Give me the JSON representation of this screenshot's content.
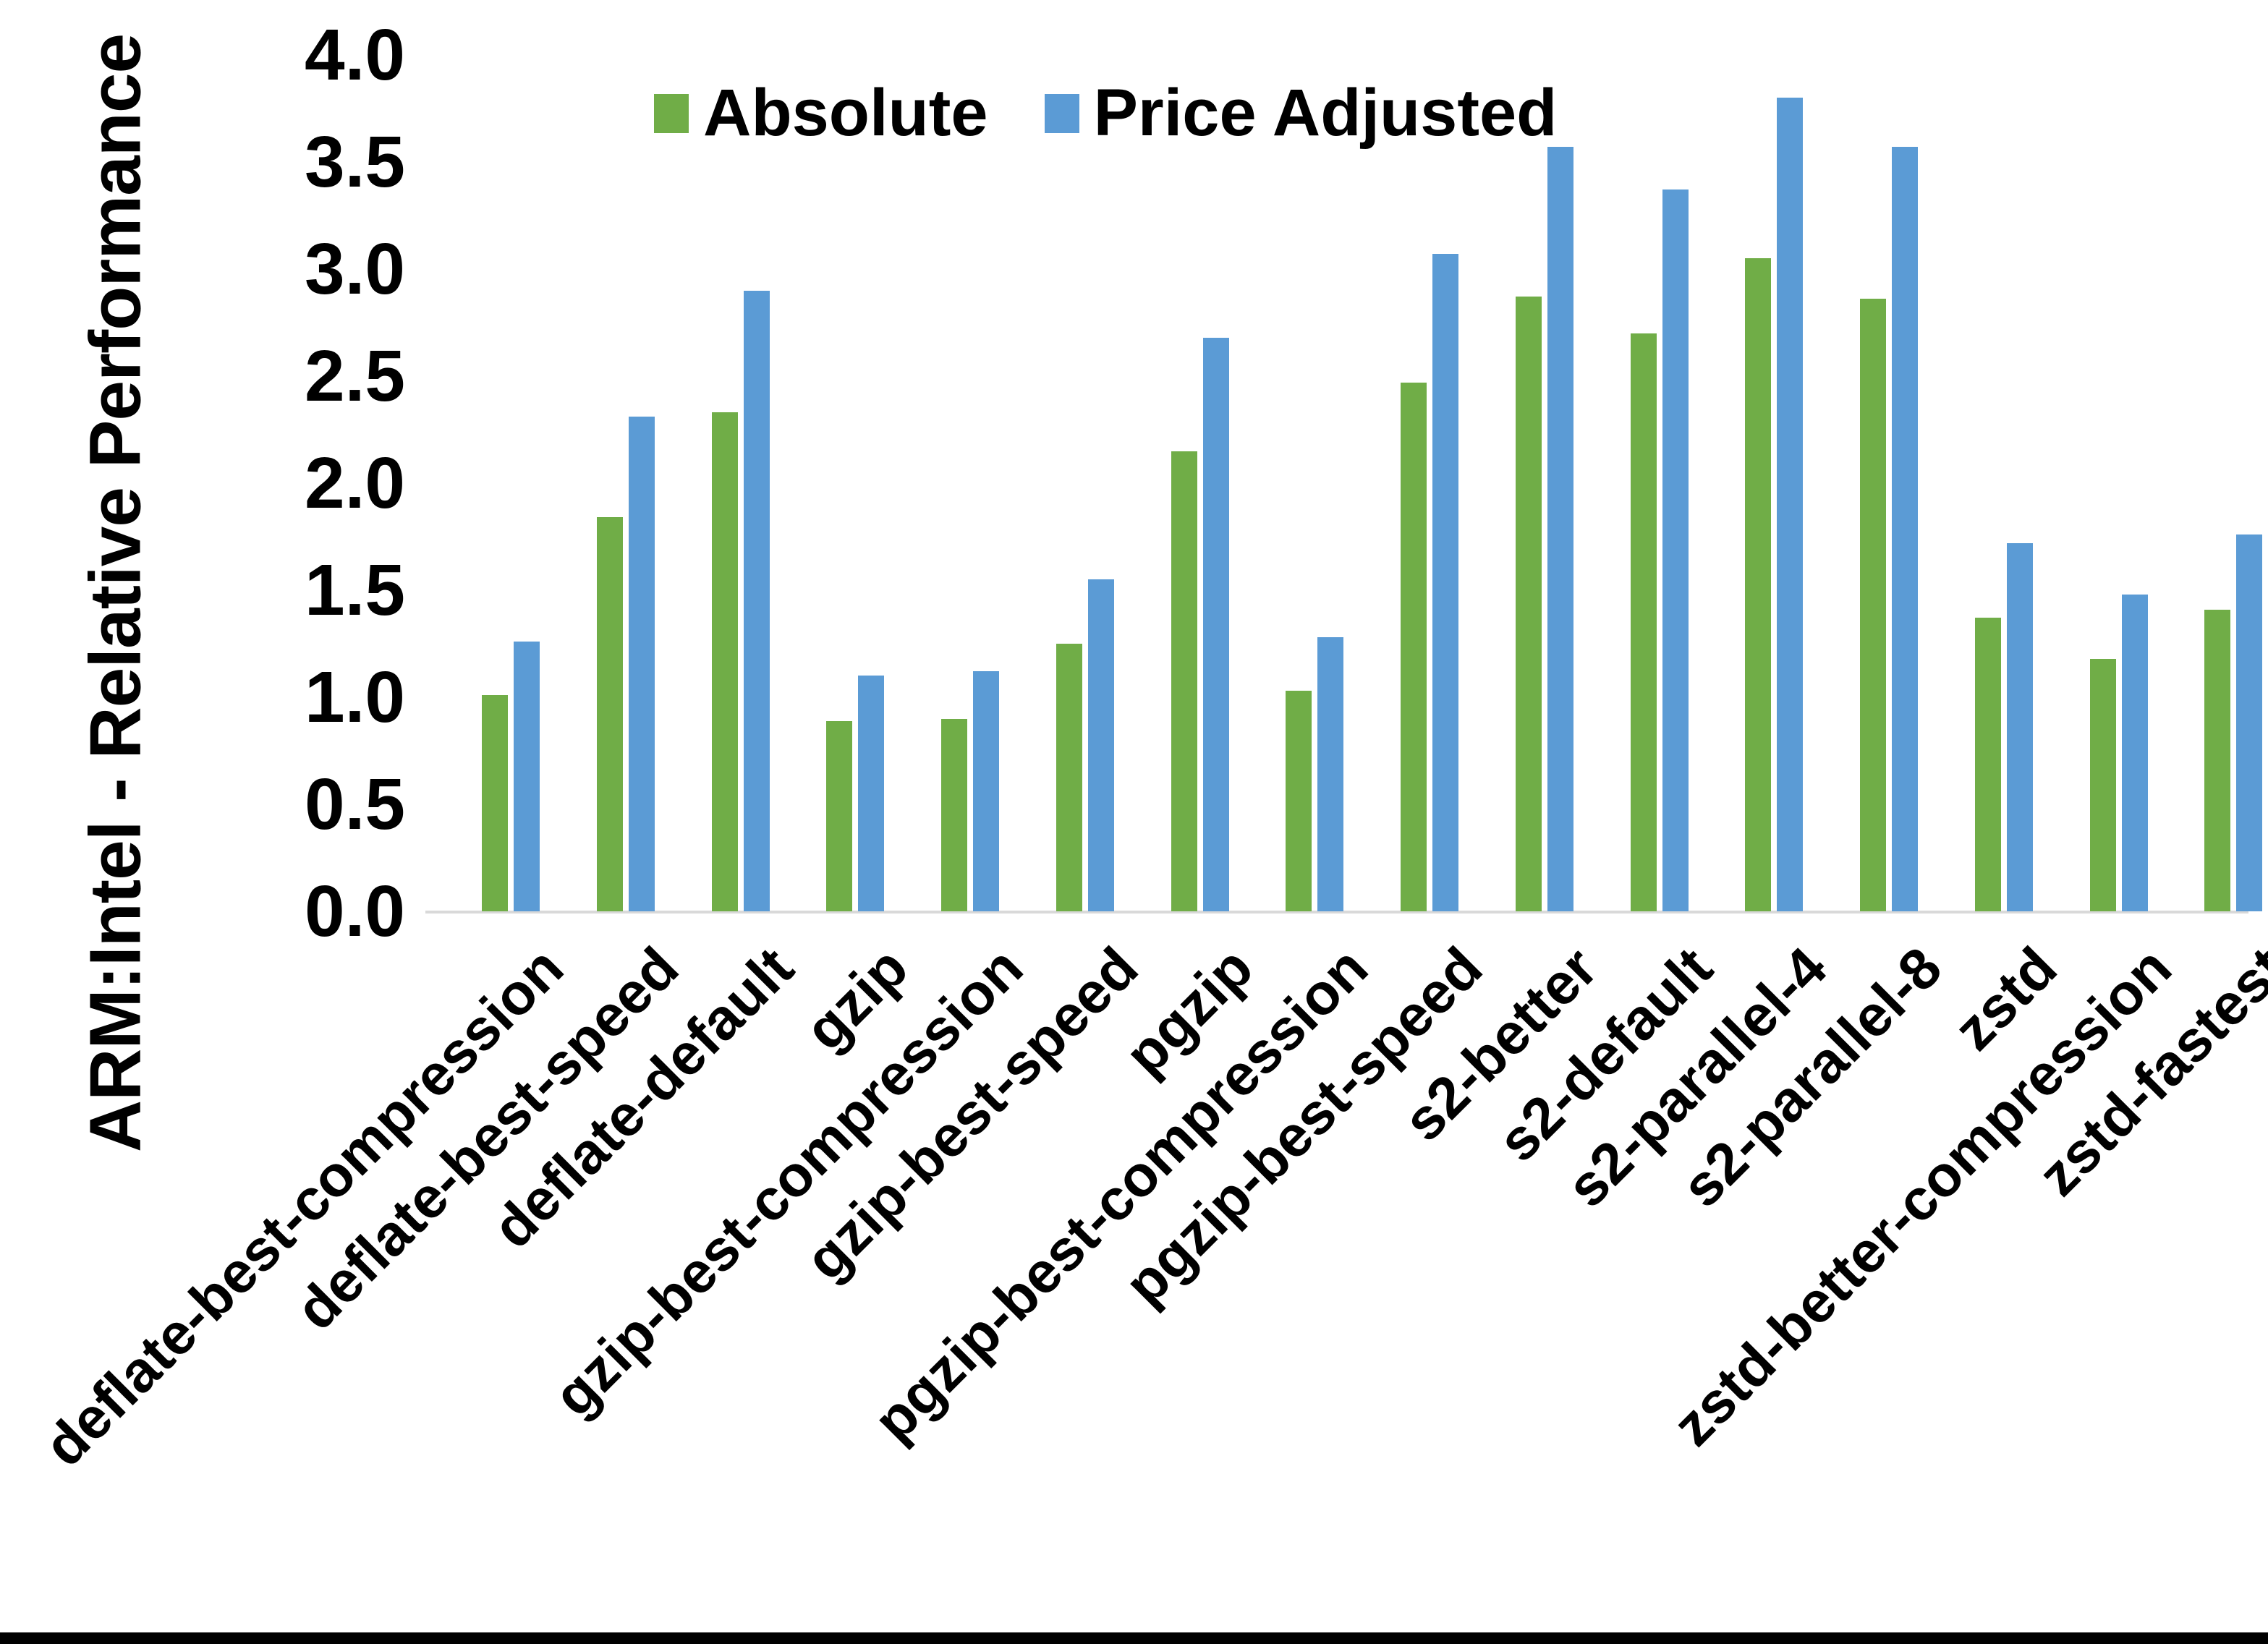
{
  "chart_data": {
    "type": "bar",
    "title": "",
    "xlabel": "",
    "ylabel": "ARM:Intel - Relative Performance",
    "ylim": [
      0.0,
      4.0
    ],
    "y_ticks": [
      "0.0",
      "0.5",
      "1.0",
      "1.5",
      "2.0",
      "2.5",
      "3.0",
      "3.5",
      "4.0"
    ],
    "grid": false,
    "legend_position": "top-center",
    "axis_line_color": "#D9D9D9",
    "categories": [
      "deflate-best-compression",
      "deflate-best-speed",
      "deflate-default",
      "gzip",
      "gzip-best-compression",
      "gzip-best-speed",
      "pgzip",
      "pgzip-best-compression",
      "pgzip-best-speed",
      "s2-better",
      "s2-default",
      "s2-parallel-4",
      "s2-parallel-8",
      "zstd",
      "zstd-better-compression",
      "zstd-fastest"
    ],
    "series": [
      {
        "name": "Absolute",
        "color": "#70AD47",
        "values": [
          1.01,
          1.84,
          2.33,
          0.89,
          0.9,
          1.25,
          2.15,
          1.03,
          2.47,
          2.87,
          2.7,
          3.05,
          2.86,
          1.37,
          1.18,
          1.41
        ]
      },
      {
        "name": "Price Adjusted",
        "color": "#5B9BD5",
        "values": [
          1.26,
          2.31,
          2.9,
          1.1,
          1.12,
          1.55,
          2.68,
          1.28,
          3.07,
          3.57,
          3.37,
          3.8,
          3.57,
          1.72,
          1.48,
          1.76
        ]
      }
    ]
  }
}
